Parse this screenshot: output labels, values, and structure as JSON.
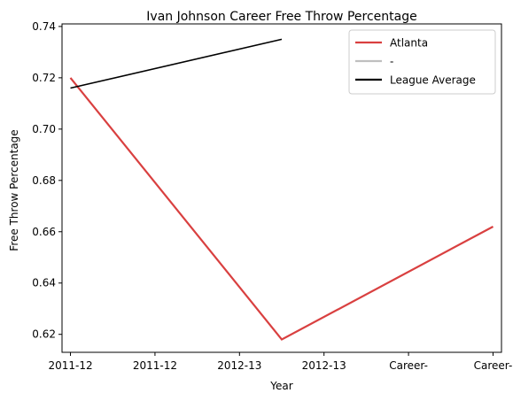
{
  "chart_data": {
    "type": "line",
    "title": "Ivan Johnson  Career Free Throw Percentage",
    "xlabel": "Year",
    "ylabel": "Free Throw Percentage",
    "x_tick_labels": [
      "2011-12",
      "2011-12",
      "2012-13",
      "2012-13",
      "Career-",
      "Career-"
    ],
    "xlim": [
      -0.1,
      5.1
    ],
    "ylim": [
      0.613,
      0.741
    ],
    "y_ticks": [
      0.62,
      0.64,
      0.66,
      0.68,
      0.7,
      0.72,
      0.74
    ],
    "y_tick_labels": [
      "0.62",
      "0.64",
      "0.66",
      "0.68",
      "0.70",
      "0.72",
      "0.74"
    ],
    "grid": false,
    "legend_position": "top-right",
    "series": [
      {
        "name": "Atlanta",
        "color": "#d94040",
        "x": [
          0,
          2.5,
          5
        ],
        "y": [
          0.72,
          0.618,
          0.662
        ]
      },
      {
        "name": "-",
        "color": "#bfbfbf",
        "x": [],
        "y": []
      },
      {
        "name": "League Average",
        "color": "#000000",
        "x": [
          0,
          2.5
        ],
        "y": [
          0.716,
          0.735
        ]
      }
    ]
  }
}
